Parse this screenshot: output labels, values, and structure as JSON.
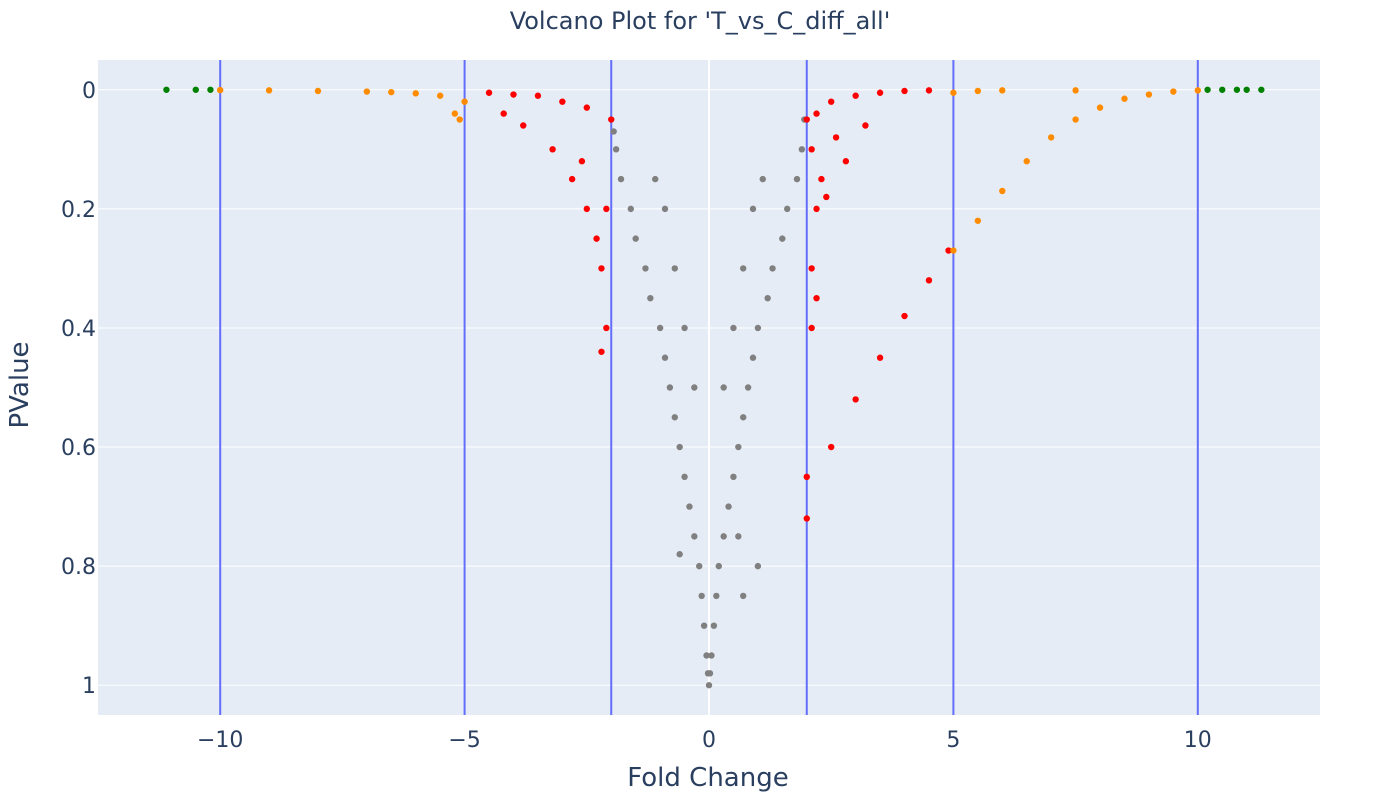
{
  "chart_data": {
    "type": "scatter",
    "title": "Volcano Plot for 'T_vs_C_diff_all'",
    "xlabel": "Fold Change",
    "ylabel": "PValue",
    "xlim": [
      -12.5,
      12.5
    ],
    "ylim": [
      1.05,
      -0.05
    ],
    "y_reversed": true,
    "grid": true,
    "x_ticks": [
      -10,
      -5,
      0,
      5,
      10
    ],
    "x_tick_labels": [
      "−10",
      "−5",
      "0",
      "5",
      "10"
    ],
    "y_ticks": [
      0,
      0.2,
      0.4,
      0.6,
      0.8,
      1
    ],
    "y_tick_labels": [
      "0",
      "0.2",
      "0.4",
      "0.6",
      "0.8",
      "1"
    ],
    "vertical_lines": [
      -10,
      -5,
      -2,
      2,
      5,
      10
    ],
    "colors": {
      "plot_bg": "#E5ECF6",
      "grid": "#ffffff",
      "threshold_line": "#636EFA",
      "not_significant": "#808080",
      "fc_2_to_5": "#FF0000",
      "fc_5_to_10": "#FF8C00",
      "fc_above_10": "#008000"
    },
    "series": [
      {
        "color": "#808080",
        "points": [
          [
            0,
            1.0
          ],
          [
            0.02,
            0.98
          ],
          [
            -0.02,
            0.98
          ],
          [
            0.05,
            0.95
          ],
          [
            -0.05,
            0.95
          ],
          [
            0.1,
            0.9
          ],
          [
            -0.1,
            0.9
          ],
          [
            0.15,
            0.85
          ],
          [
            -0.15,
            0.85
          ],
          [
            0.2,
            0.8
          ],
          [
            -0.2,
            0.8
          ],
          [
            0.3,
            0.75
          ],
          [
            -0.3,
            0.75
          ],
          [
            0.4,
            0.7
          ],
          [
            -0.4,
            0.7
          ],
          [
            0.5,
            0.65
          ],
          [
            -0.5,
            0.65
          ],
          [
            0.6,
            0.6
          ],
          [
            -0.6,
            0.6
          ],
          [
            0.7,
            0.55
          ],
          [
            -0.7,
            0.55
          ],
          [
            0.8,
            0.5
          ],
          [
            -0.8,
            0.5
          ],
          [
            0.9,
            0.45
          ],
          [
            -0.9,
            0.45
          ],
          [
            1.0,
            0.4
          ],
          [
            -1.0,
            0.4
          ],
          [
            1.2,
            0.35
          ],
          [
            -1.2,
            0.35
          ],
          [
            1.3,
            0.3
          ],
          [
            -1.3,
            0.3
          ],
          [
            1.5,
            0.25
          ],
          [
            -1.5,
            0.25
          ],
          [
            1.6,
            0.2
          ],
          [
            -1.6,
            0.2
          ],
          [
            1.8,
            0.15
          ],
          [
            -1.8,
            0.15
          ],
          [
            1.9,
            0.1
          ],
          [
            -1.9,
            0.1
          ],
          [
            1.95,
            0.05
          ],
          [
            -1.95,
            0.07
          ],
          [
            0.3,
            0.5
          ],
          [
            -0.3,
            0.5
          ],
          [
            0.5,
            0.4
          ],
          [
            -0.5,
            0.4
          ],
          [
            0.7,
            0.3
          ],
          [
            -0.7,
            0.3
          ],
          [
            0.9,
            0.2
          ],
          [
            -0.9,
            0.2
          ],
          [
            1.1,
            0.15
          ],
          [
            -1.1,
            0.15
          ],
          [
            0.6,
            0.75
          ],
          [
            -0.6,
            0.78
          ],
          [
            1.0,
            0.8
          ],
          [
            0.7,
            0.85
          ]
        ]
      },
      {
        "color": "#FF0000",
        "points": [
          [
            2.0,
            0.05
          ],
          [
            2.2,
            0.04
          ],
          [
            2.5,
            0.02
          ],
          [
            3.0,
            0.01
          ],
          [
            3.5,
            0.005
          ],
          [
            4.0,
            0.002
          ],
          [
            4.5,
            0.001
          ],
          [
            2.1,
            0.1
          ],
          [
            2.3,
            0.15
          ],
          [
            2.6,
            0.08
          ],
          [
            2.2,
            0.2
          ],
          [
            2.1,
            0.3
          ],
          [
            2.1,
            0.4
          ],
          [
            2.2,
            0.35
          ],
          [
            2.4,
            0.18
          ],
          [
            2.8,
            0.12
          ],
          [
            3.2,
            0.06
          ],
          [
            2.0,
            0.65
          ],
          [
            2.5,
            0.6
          ],
          [
            3.0,
            0.52
          ],
          [
            3.5,
            0.45
          ],
          [
            4.0,
            0.38
          ],
          [
            4.5,
            0.32
          ],
          [
            4.9,
            0.27
          ],
          [
            2.0,
            0.72
          ],
          [
            -2.0,
            0.05
          ],
          [
            -2.5,
            0.03
          ],
          [
            -3.0,
            0.02
          ],
          [
            -3.5,
            0.01
          ],
          [
            -4.0,
            0.008
          ],
          [
            -4.5,
            0.005
          ],
          [
            -2.1,
            0.2
          ],
          [
            -2.2,
            0.3
          ],
          [
            -2.3,
            0.25
          ],
          [
            -2.5,
            0.2
          ],
          [
            -2.8,
            0.15
          ],
          [
            -3.2,
            0.1
          ],
          [
            -2.1,
            0.4
          ],
          [
            -2.2,
            0.44
          ],
          [
            -3.8,
            0.06
          ],
          [
            -4.2,
            0.04
          ],
          [
            -2.6,
            0.12
          ]
        ]
      },
      {
        "color": "#FF8C00",
        "points": [
          [
            5.0,
            0.27
          ],
          [
            5.5,
            0.22
          ],
          [
            6.0,
            0.17
          ],
          [
            6.5,
            0.12
          ],
          [
            7.0,
            0.08
          ],
          [
            7.5,
            0.05
          ],
          [
            8.0,
            0.03
          ],
          [
            8.5,
            0.015
          ],
          [
            9.0,
            0.008
          ],
          [
            9.5,
            0.003
          ],
          [
            10.0,
            0.001
          ],
          [
            5.0,
            0.005
          ],
          [
            5.5,
            0.002
          ],
          [
            6.0,
            0.001
          ],
          [
            7.5,
            0.001
          ],
          [
            -5.0,
            0.02
          ],
          [
            -5.5,
            0.01
          ],
          [
            -6.0,
            0.006
          ],
          [
            -6.5,
            0.004
          ],
          [
            -7.0,
            0.003
          ],
          [
            -8.0,
            0.002
          ],
          [
            -9.0,
            0.001
          ],
          [
            -10.0,
            0.0005
          ],
          [
            -5.2,
            0.04
          ],
          [
            -5.1,
            0.05
          ]
        ]
      },
      {
        "color": "#008000",
        "points": [
          [
            -11.1,
            0.0
          ],
          [
            -10.5,
            0.0
          ],
          [
            -10.2,
            0.0
          ],
          [
            10.2,
            0.0
          ],
          [
            10.5,
            0.0
          ],
          [
            10.8,
            0.0
          ],
          [
            11.0,
            0.0
          ],
          [
            11.3,
            0.0
          ]
        ]
      }
    ]
  }
}
